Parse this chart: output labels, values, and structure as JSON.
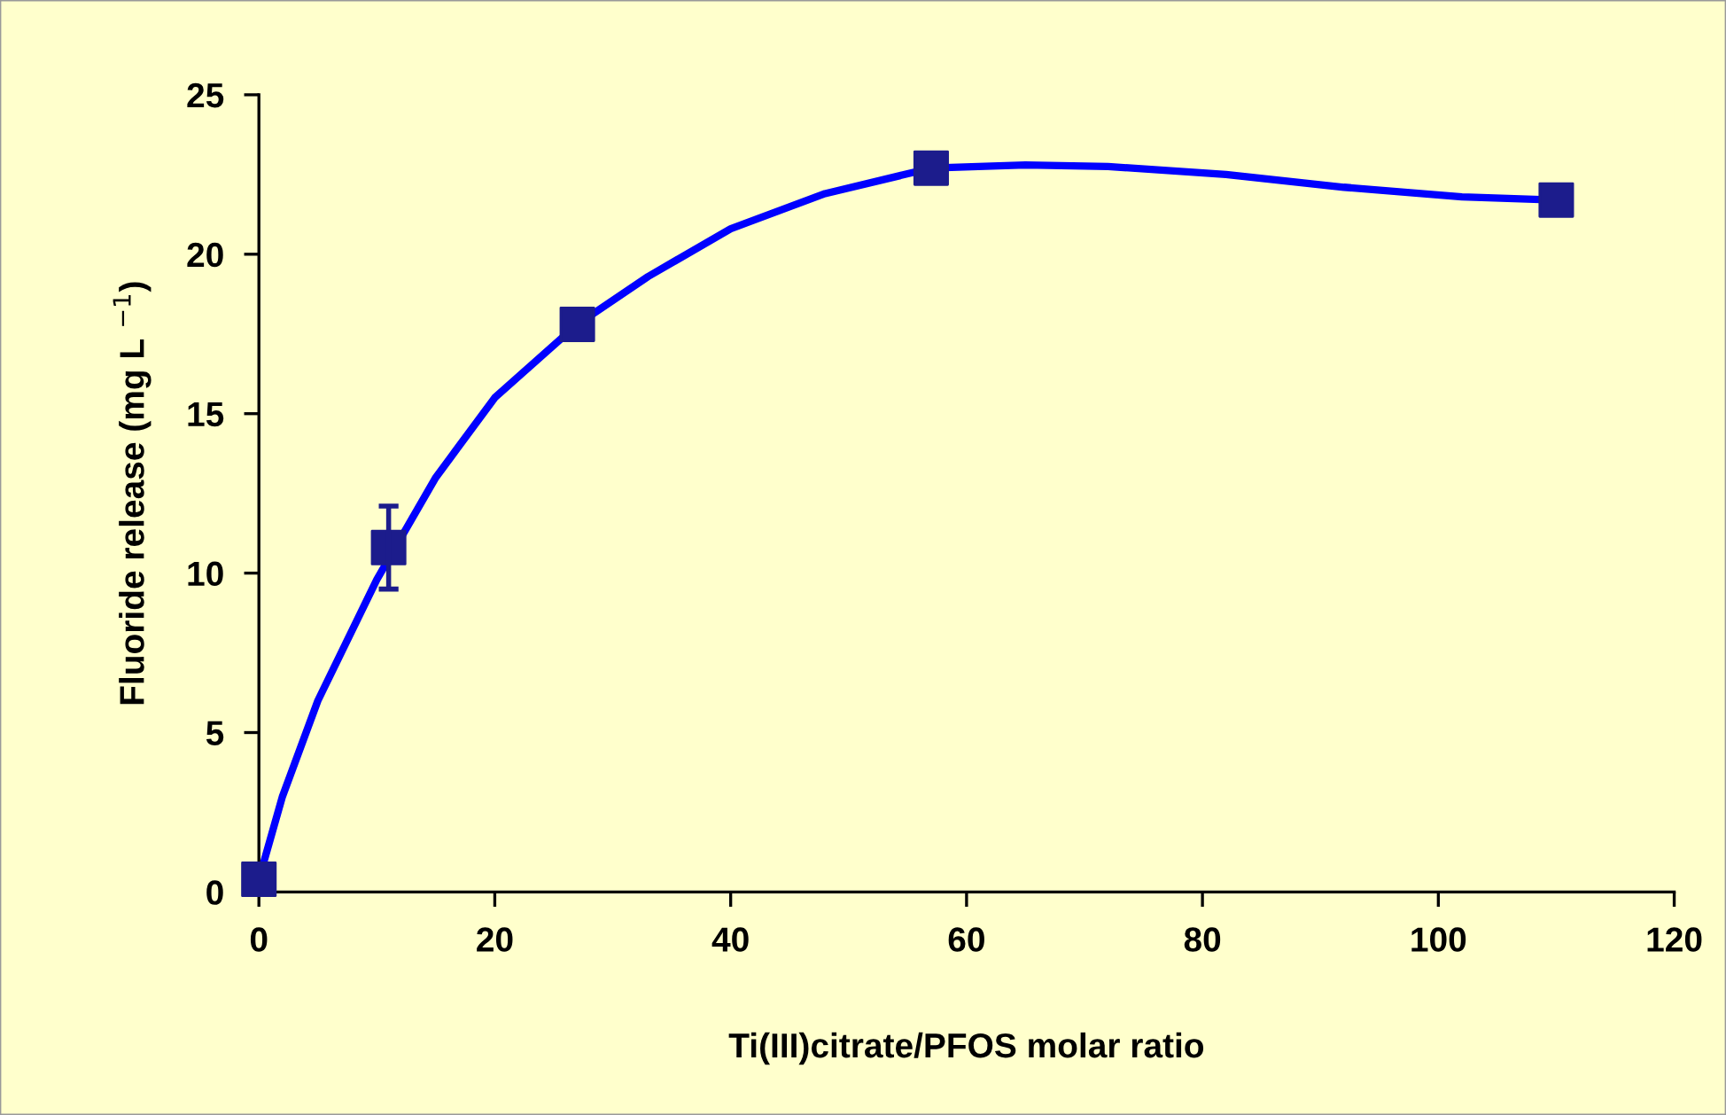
{
  "chart_data": {
    "type": "line",
    "xlabel": "Ti(III)citrate/PFOS molar ratio",
    "ylabel": "Fluoride release (mg L $^{−1}$)",
    "xlim": [
      0,
      120
    ],
    "xticks": [
      0,
      20,
      40,
      60,
      80,
      100,
      120
    ],
    "ylim": [
      0,
      25
    ],
    "yticks": [
      0,
      5,
      10,
      15,
      20,
      25
    ],
    "grid": false,
    "legend": false,
    "series": [
      {
        "color": "#0000ff",
        "marker": "none",
        "x": [
          0,
          2,
          5,
          10,
          15,
          20,
          27,
          33,
          40,
          48,
          57,
          65,
          72,
          82,
          92,
          102,
          110
        ],
        "values": [
          0.4,
          3,
          6,
          9.8,
          13,
          15.5,
          17.8,
          19.3,
          20.8,
          21.9,
          22.7,
          22.8,
          22.75,
          22.5,
          22.1,
          21.8,
          21.7
        ]
      },
      {
        "type": "scatter",
        "color": "#1c1c8c",
        "marker": "square",
        "x": [
          0,
          11,
          27,
          57,
          110
        ],
        "values": [
          0.4,
          10.8,
          17.8,
          22.7,
          21.7
        ],
        "errors": [
          null,
          1.3,
          null,
          null,
          null
        ]
      }
    ]
  }
}
